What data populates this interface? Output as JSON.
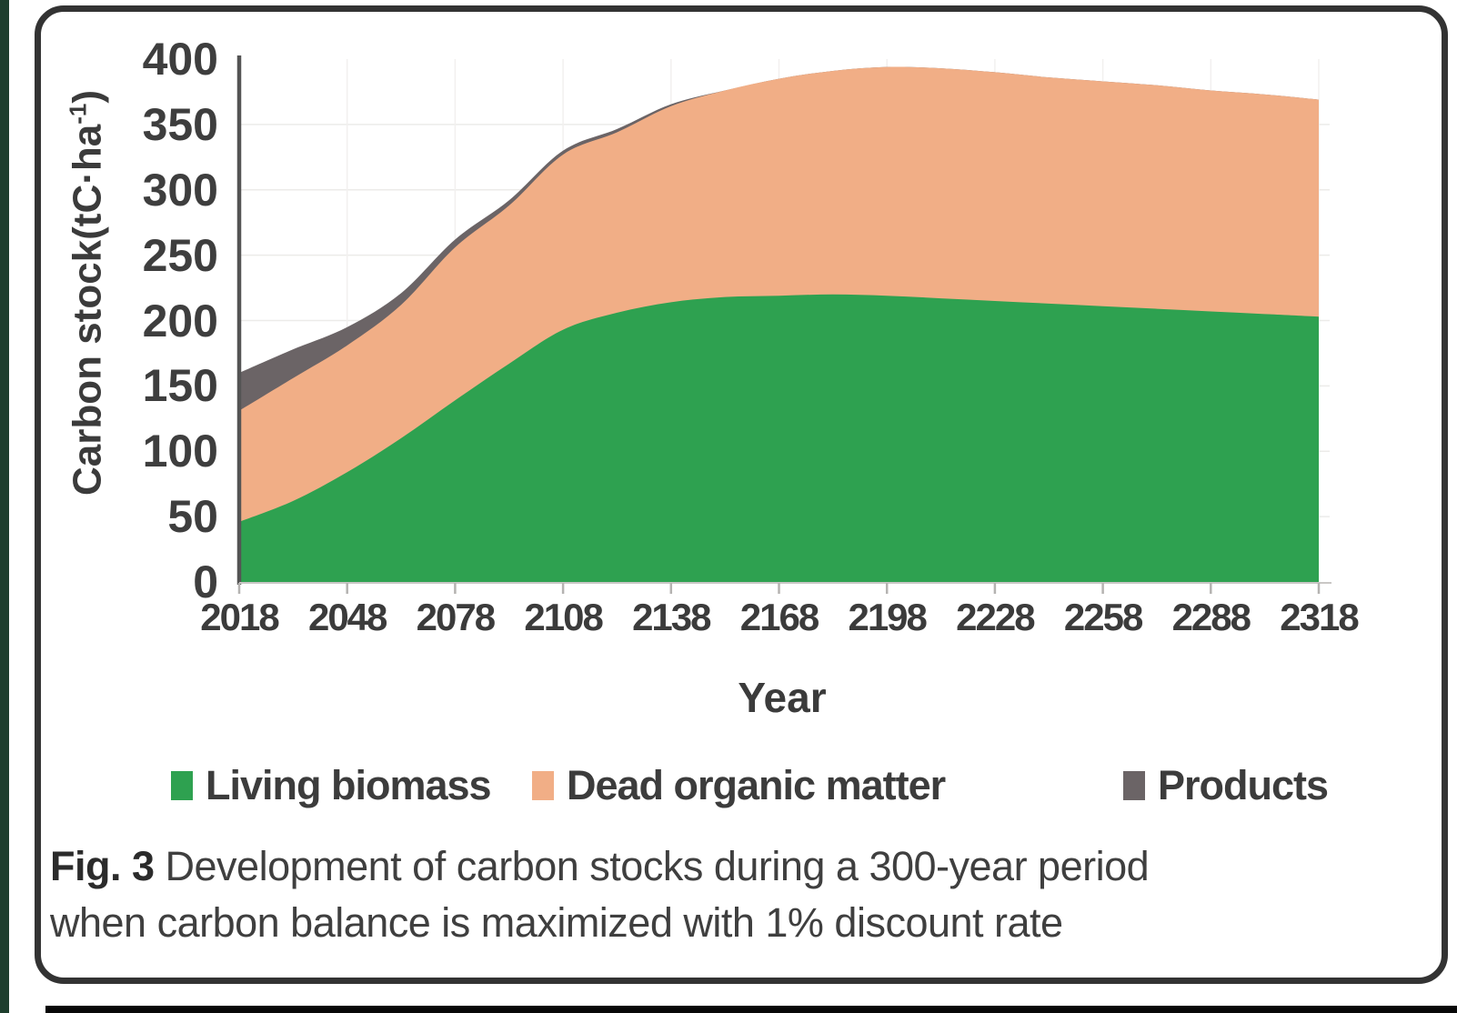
{
  "figure": {
    "caption_label": "Fig. 3",
    "caption_line1": " Development of carbon stocks during a 300-year period",
    "caption_line2": "when carbon balance is maximized with 1% discount rate"
  },
  "axis": {
    "ylabel_pre": "Carbon stock(tC·ha",
    "ylabel_sup": "-1",
    "ylabel_post": ")",
    "xlabel": "Year",
    "y_ticks": [
      400,
      350,
      300,
      250,
      200,
      150,
      100,
      50,
      0
    ],
    "x_ticks": [
      2018,
      2048,
      2078,
      2108,
      2138,
      2168,
      2198,
      2228,
      2258,
      2288,
      2318
    ]
  },
  "colors": {
    "living_biomass": "#2EA150",
    "dead_organic_matter": "#F1AE86",
    "products": "#6B6466",
    "axis_line": "#545454",
    "baseline": "#c9c7c5",
    "tick_mark": "#b5b3b1",
    "grid_h": "#ecebe9",
    "grid_v": "#f2f0ef",
    "card_border": "#333333",
    "left_strip": "#1d3e2d",
    "bottom_strip": "#070707"
  },
  "chart_data": {
    "type": "area",
    "stacked": true,
    "title": "",
    "xlabel": "Year",
    "ylabel": "Carbon stock (tC·ha⁻¹)",
    "ylim": [
      0,
      400
    ],
    "xlim": [
      2018,
      2318
    ],
    "grid": true,
    "legend_position": "bottom",
    "x": [
      2018,
      2033,
      2048,
      2063,
      2078,
      2093,
      2108,
      2123,
      2138,
      2153,
      2168,
      2183,
      2198,
      2213,
      2228,
      2243,
      2258,
      2273,
      2288,
      2303,
      2318
    ],
    "series": [
      {
        "name": "Living biomass",
        "color": "#2EA150",
        "values": [
          46,
          62,
          84,
          110,
          139,
          167,
          193,
          206,
          214,
          218,
          219,
          220,
          219,
          217,
          215,
          213,
          211,
          209,
          207,
          205,
          203
        ]
      },
      {
        "name": "Dead organic matter",
        "color": "#F1AE86",
        "values": [
          85,
          94,
          97,
          102,
          117,
          121,
          134,
          138,
          150,
          158,
          166,
          171,
          175,
          176,
          175,
          173,
          172,
          171,
          169,
          168,
          166
        ]
      },
      {
        "name": "Products",
        "color": "#6B6466",
        "values": [
          29,
          22,
          14,
          9,
          6,
          4,
          3,
          2.5,
          1.5,
          0,
          0,
          0,
          0,
          0,
          0,
          0,
          0,
          0,
          0,
          0,
          0
        ]
      }
    ]
  }
}
